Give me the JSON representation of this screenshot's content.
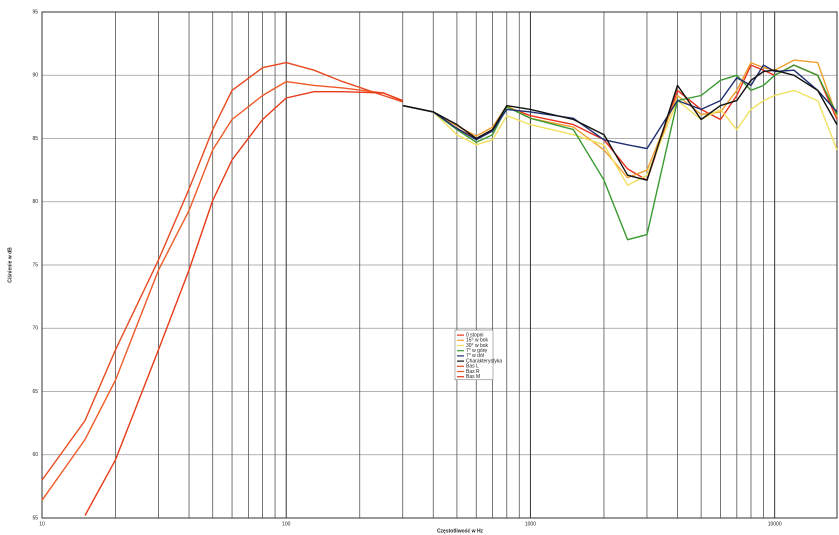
{
  "chart_data": {
    "type": "line",
    "x_label": "Częstotliwość w Hz",
    "y_label": "Ciśnienie w dB",
    "x": [
      10,
      15,
      20,
      30,
      40,
      50,
      60,
      80,
      100,
      130,
      170,
      250,
      300,
      400,
      500,
      600,
      700,
      800,
      1000,
      1500,
      2000,
      2500,
      3000,
      4000,
      5000,
      6000,
      7000,
      8000,
      9000,
      10000,
      12000,
      15000,
      18000
    ],
    "xlim": [
      10,
      18000
    ],
    "xticks": [
      10,
      100,
      1000,
      10000
    ],
    "xscale": "log",
    "minor_grid": true,
    "ylim": [
      55,
      95
    ],
    "yticks": [
      55,
      60,
      65,
      70,
      75,
      80,
      85,
      90,
      95
    ],
    "grid": true,
    "legend": "center",
    "series": [
      {
        "name": "0 stopni",
        "color": "#e8321e",
        "values": [
          null,
          null,
          null,
          null,
          null,
          null,
          null,
          null,
          null,
          null,
          null,
          null,
          87.6,
          87.1,
          85.8,
          85.0,
          85.7,
          87.5,
          86.8,
          86.1,
          84.9,
          82.6,
          81.7,
          88.8,
          87.3,
          86.5,
          88.4,
          90.8,
          90.4,
          90.0,
          90.8,
          90.0,
          86.5
        ]
      },
      {
        "name": "15° w bok",
        "color": "#f0a030",
        "values": [
          null,
          null,
          null,
          null,
          null,
          null,
          null,
          null,
          null,
          null,
          null,
          null,
          87.6,
          87.1,
          86.0,
          85.2,
          85.9,
          87.6,
          86.6,
          85.9,
          84.1,
          81.9,
          82.5,
          88.4,
          86.9,
          87.1,
          88.8,
          91.0,
          90.6,
          90.4,
          91.2,
          91.0,
          86.7
        ]
      },
      {
        "name": "30° w bok",
        "color": "#f2e060",
        "values": [
          null,
          null,
          null,
          null,
          null,
          null,
          null,
          null,
          null,
          null,
          null,
          null,
          87.6,
          87.1,
          85.3,
          84.5,
          84.9,
          86.8,
          86.1,
          85.3,
          84.5,
          81.3,
          82.1,
          88.0,
          86.5,
          87.3,
          85.7,
          87.3,
          88.0,
          88.4,
          88.8,
          88.0,
          84.1
        ]
      },
      {
        "name": "7° w górę",
        "color": "#3a9a30",
        "values": [
          null,
          null,
          null,
          null,
          null,
          null,
          null,
          null,
          null,
          null,
          null,
          null,
          87.6,
          87.1,
          85.7,
          84.7,
          85.3,
          87.5,
          86.6,
          85.7,
          81.7,
          77.0,
          77.4,
          88.0,
          88.4,
          89.6,
          90.0,
          88.8,
          89.2,
          90.0,
          90.8,
          90.0,
          86.9
        ]
      },
      {
        "name": "7° w dół",
        "color": "#203070",
        "values": [
          null,
          null,
          null,
          null,
          null,
          null,
          null,
          null,
          null,
          null,
          null,
          null,
          87.6,
          87.1,
          85.8,
          84.9,
          85.6,
          87.3,
          87.1,
          86.6,
          84.9,
          84.5,
          84.2,
          88.0,
          87.3,
          88.0,
          89.8,
          89.2,
          90.8,
          90.3,
          90.4,
          88.8,
          87.1
        ]
      },
      {
        "name": "Charakterystyka",
        "color": "#111111",
        "values": [
          null,
          null,
          null,
          null,
          null,
          null,
          null,
          null,
          null,
          null,
          null,
          null,
          87.6,
          87.1,
          86.1,
          85.0,
          85.7,
          87.6,
          87.3,
          86.5,
          85.3,
          82.1,
          81.7,
          89.2,
          86.5,
          87.6,
          88.0,
          89.6,
          90.3,
          90.4,
          90.0,
          88.8,
          86.1
        ]
      },
      {
        "name": "Bas L",
        "color": "#e84a20",
        "values": [
          58.0,
          62.7,
          68.3,
          75.4,
          81.0,
          85.7,
          88.8,
          90.6,
          91.0,
          90.4,
          89.5,
          88.4,
          87.9,
          null,
          null,
          null,
          null,
          null,
          null,
          null,
          null,
          null,
          null,
          null,
          null,
          null,
          null,
          null,
          null,
          null,
          null,
          null,
          null
        ]
      },
      {
        "name": "Bas R",
        "color": "#f05a28",
        "values": [
          56.4,
          61.2,
          65.9,
          74.6,
          79.3,
          84.1,
          86.5,
          88.4,
          89.5,
          89.2,
          89.0,
          88.6,
          88.0,
          null,
          null,
          null,
          null,
          null,
          null,
          null,
          null,
          null,
          null,
          null,
          null,
          null,
          null,
          null,
          null,
          null,
          null,
          null,
          null
        ]
      },
      {
        "name": "Bas M",
        "color": "#e83a18",
        "values": [
          null,
          55.2,
          59.6,
          68.3,
          74.6,
          80.1,
          83.3,
          86.5,
          88.2,
          88.7,
          88.7,
          88.6,
          88.0,
          null,
          null,
          null,
          null,
          null,
          null,
          null,
          null,
          null,
          null,
          null,
          null,
          null,
          null,
          null,
          null,
          null,
          null,
          null,
          null
        ]
      }
    ]
  }
}
